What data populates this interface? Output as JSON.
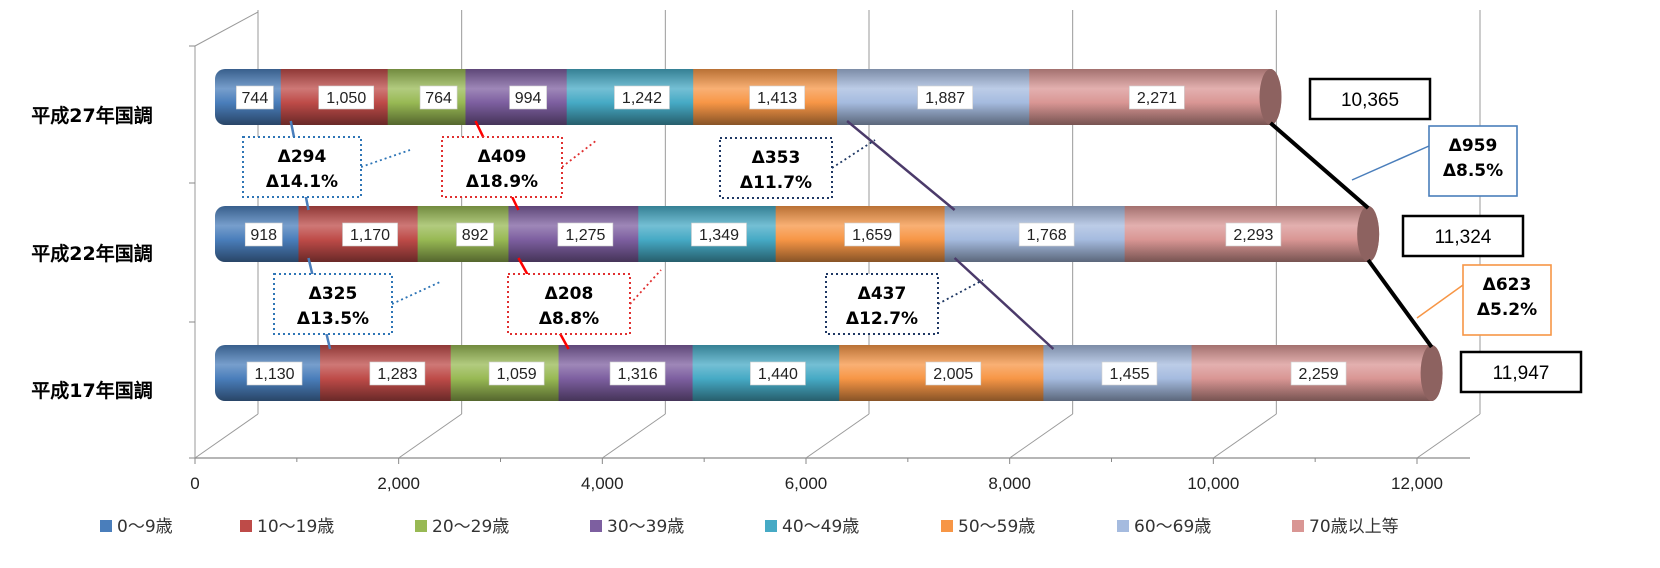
{
  "chart_data": {
    "type": "bar",
    "orientation": "horizontal",
    "stacked": true,
    "categories": [
      "平成27年国調",
      "平成22年国調",
      "平成17年国調"
    ],
    "xlim": [
      0,
      12000
    ],
    "xticks": [
      "0",
      "2,000",
      "4,000",
      "6,000",
      "8,000",
      "10,000",
      "12,000"
    ],
    "series": [
      {
        "name": "0〜9歳",
        "color": "#4A7EBB",
        "values": [
          744,
          918,
          1130
        ],
        "labels": [
          "744",
          "918",
          "1,130"
        ]
      },
      {
        "name": "10〜19歳",
        "color": "#BE4B48",
        "values": [
          1050,
          1170,
          1283
        ],
        "labels": [
          "1,050",
          "1,170",
          "1,283"
        ]
      },
      {
        "name": "20〜29歳",
        "color": "#98B954",
        "values": [
          764,
          892,
          1059
        ],
        "labels": [
          "764",
          "892",
          "1,059"
        ]
      },
      {
        "name": "30〜39歳",
        "color": "#7D5FA0",
        "values": [
          994,
          1275,
          1316
        ],
        "labels": [
          "994",
          "1,275",
          "1,316"
        ]
      },
      {
        "name": "40〜49歳",
        "color": "#46AAC5",
        "values": [
          1242,
          1349,
          1440
        ],
        "labels": [
          "1,242",
          "1,349",
          "1,440"
        ]
      },
      {
        "name": "50〜59歳",
        "color": "#F79646",
        "values": [
          1413,
          1659,
          2005
        ],
        "labels": [
          "1,413",
          "1,659",
          "2,005"
        ]
      },
      {
        "name": "60〜69歳",
        "color": "#A5BBDF",
        "values": [
          1887,
          1768,
          1455
        ],
        "labels": [
          "1,887",
          "1,768",
          "1,455"
        ]
      },
      {
        "name": "70歳以上等",
        "color": "#D99694",
        "values": [
          2271,
          2293,
          2259
        ],
        "labels": [
          "2,271",
          "2,293",
          "2,259"
        ]
      }
    ],
    "totals": [
      "10,365",
      "11,324",
      "11,947"
    ],
    "changes": [
      {
        "lines": [
          "Δ294",
          "Δ14.1%"
        ],
        "between": [
          0,
          1
        ],
        "boundary": 1,
        "style": "dotted",
        "color": "#2E75B6"
      },
      {
        "lines": [
          "Δ409",
          "Δ18.9%"
        ],
        "between": [
          0,
          1
        ],
        "boundary": 3,
        "style": "dotted",
        "color": "#E03030"
      },
      {
        "lines": [
          "Δ353",
          "Δ11.7%"
        ],
        "between": [
          0,
          1
        ],
        "boundary": 6,
        "style": "dotted",
        "color": "#1F3864"
      },
      {
        "lines": [
          "Δ325",
          "Δ13.5%"
        ],
        "between": [
          1,
          2
        ],
        "boundary": 1,
        "style": "dotted",
        "color": "#2E75B6"
      },
      {
        "lines": [
          "Δ208",
          "Δ8.8%"
        ],
        "between": [
          1,
          2
        ],
        "boundary": 3,
        "style": "dotted",
        "color": "#E03030"
      },
      {
        "lines": [
          "Δ437",
          "Δ12.7%"
        ],
        "between": [
          1,
          2
        ],
        "boundary": 6,
        "style": "dotted",
        "color": "#1F3864"
      },
      {
        "lines": [
          "Δ959",
          "Δ8.5%"
        ],
        "between": [
          0,
          1
        ],
        "boundary": 8,
        "style": "solid",
        "color": "#4A7EBB"
      },
      {
        "lines": [
          "Δ623",
          "Δ5.2%"
        ],
        "between": [
          1,
          2
        ],
        "boundary": 8,
        "style": "solid",
        "color": "#F79646"
      }
    ],
    "connector_colors": {
      "1": "#4A7EBB",
      "3": "#FF0000",
      "6": "#4B3A6A",
      "8": "#000000"
    },
    "legend_position": "bottom",
    "grid": true
  }
}
